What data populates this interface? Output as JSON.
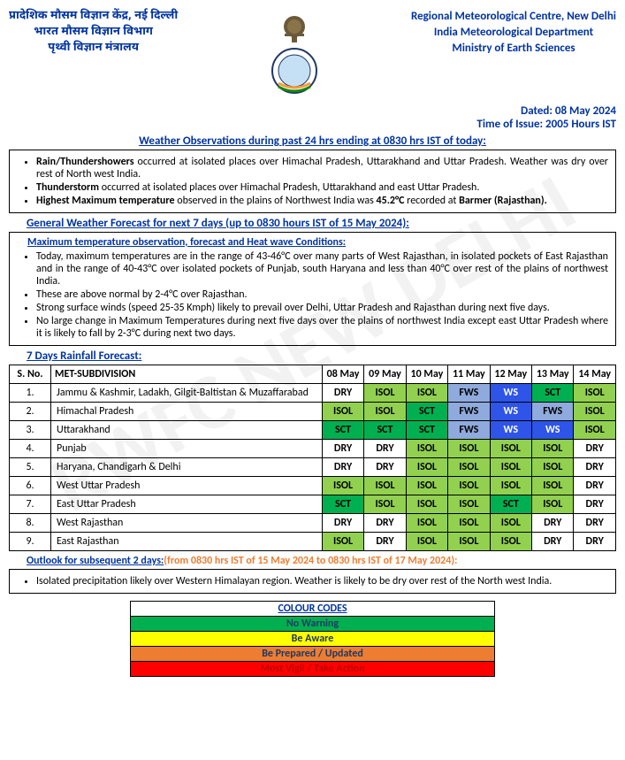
{
  "header": {
    "hindi_line1": "प्रादेशिक मौसम विज्ञान केंद्र, नई दिल्ली",
    "hindi_line2": "भारत मौसम विज्ञान विभाग",
    "hindi_line3": "पृथ्वी विज्ञान मंत्रालय",
    "eng_line1": "Regional Meteorological Centre, New Delhi",
    "eng_line2": "India Meteorological Department",
    "eng_line3": "Ministry of Earth Sciences"
  },
  "dated": "Dated: 08 May 2024",
  "time_issue": "Time of Issue: 2005 Hours IST",
  "obs_title": "Weather Observations during past 24 hrs ending at 0830 hrs IST of today:",
  "obs_bullets": [
    "<b>Rain/Thundershowers</b> occurred at isolated places over Himachal Pradesh, Uttarakhand and Uttar Pradesh. Weather was dry over rest of North west India.",
    "<b>Thunderstorm</b> occurred at isolated places over Himachal Pradesh, Uttarakhand and east Uttar Pradesh.",
    "<b>Highest Maximum temperature</b> observed in the plains of Northwest India was <b>45.2°C</b> recorded at <b>Barmer (Rajasthan).</b>"
  ],
  "forecast_title_label": "General Weather Forecast for next 7 days ",
  "forecast_title_extra": "(up to 0830 hours IST of 15 May 2024):",
  "maxtemp_title": "Maximum temperature observation, forecast and Heat wave Conditions",
  "maxtemp_bullets": [
    "Today, maximum temperatures are in the range of 43-46°C over many parts of West Rajasthan, in isolated pockets of East Rajasthan and in the range of 40-43°C over isolated pockets of Punjab, south Haryana and less than 40°C over rest of the plains of northwest India.",
    "These are above normal by 2-4°C over Rajasthan.",
    "Strong surface winds (speed 25-35 Kmph) likely to prevail over Delhi, Uttar Pradesh and Rajasthan during next five days.",
    "No large change in Maximum Temperatures during next five days over the plains of northwest India except east Uttar Pradesh where it is likely to fall by 2-3°C during next two days."
  ],
  "rain_title": "7 Days Rainfall Forecast:",
  "rain_table": {
    "headers": [
      "S. No.",
      "MET-SUBDIVISION",
      "08 May",
      "09 May",
      "10 May",
      "11 May",
      "12 May",
      "13 May",
      "14 May"
    ],
    "legend_colors": {
      "DRY": "#ffffff",
      "ISOL": "#92d050",
      "SCT": "#00b050",
      "FWS": "#8faadc",
      "WS": "#2e54e8"
    },
    "rows": [
      {
        "n": "1.",
        "name": "Jammu & Kashmir, Ladakh, Gilgit-Baltistan & Muzaffarabad",
        "d": [
          "DRY",
          "ISOL",
          "ISOL",
          "FWS",
          "WS",
          "SCT",
          "ISOL"
        ]
      },
      {
        "n": "2.",
        "name": "Himachal Pradesh",
        "d": [
          "ISOL",
          "ISOL",
          "SCT",
          "FWS",
          "WS",
          "FWS",
          "ISOL"
        ]
      },
      {
        "n": "3.",
        "name": "Uttarakhand",
        "d": [
          "SCT",
          "SCT",
          "SCT",
          "FWS",
          "WS",
          "WS",
          "ISOL"
        ]
      },
      {
        "n": "4.",
        "name": "Punjab",
        "d": [
          "DRY",
          "DRY",
          "ISOL",
          "ISOL",
          "ISOL",
          "ISOL",
          "DRY"
        ]
      },
      {
        "n": "5.",
        "name": "Haryana, Chandigarh & Delhi",
        "d": [
          "DRY",
          "DRY",
          "ISOL",
          "ISOL",
          "ISOL",
          "ISOL",
          "DRY"
        ]
      },
      {
        "n": "6.",
        "name": "West Uttar Pradesh",
        "d": [
          "ISOL",
          "ISOL",
          "ISOL",
          "ISOL",
          "ISOL",
          "ISOL",
          "DRY"
        ]
      },
      {
        "n": "7.",
        "name": "East Uttar Pradesh",
        "d": [
          "SCT",
          "ISOL",
          "ISOL",
          "ISOL",
          "SCT",
          "ISOL",
          "DRY"
        ]
      },
      {
        "n": "8.",
        "name": "West Rajasthan",
        "d": [
          "DRY",
          "DRY",
          "ISOL",
          "ISOL",
          "ISOL",
          "DRY",
          "DRY"
        ]
      },
      {
        "n": "9.",
        "name": "East Rajasthan",
        "d": [
          "ISOL",
          "DRY",
          "ISOL",
          "ISOL",
          "ISOL",
          "DRY",
          "DRY"
        ]
      }
    ]
  },
  "outlook_label": "Outlook for subsequent 2 days:",
  "outlook_span": "(from 0830 hrs IST of 15 May 2024 to 0830 hrs IST of 17 May 2024):",
  "outlook_bullet": "Isolated precipitation likely over Western Himalayan region. Weather is likely to be dry over rest of the North west India.",
  "codes_title": "COLOUR CODES",
  "codes": [
    {
      "label": "No Warning",
      "bg": "#00b050",
      "color": "#1f3864"
    },
    {
      "label": "Be Aware",
      "bg": "#ffff00",
      "color": "#1f3864"
    },
    {
      "label": "Be Prepared / Updated",
      "bg": "#ed7d31",
      "color": "#1f3864"
    },
    {
      "label": "Most Vigil / Take Action",
      "bg": "#ff0000",
      "color": "#c00000"
    }
  ],
  "watermark": "RWFC NEW DELHI"
}
